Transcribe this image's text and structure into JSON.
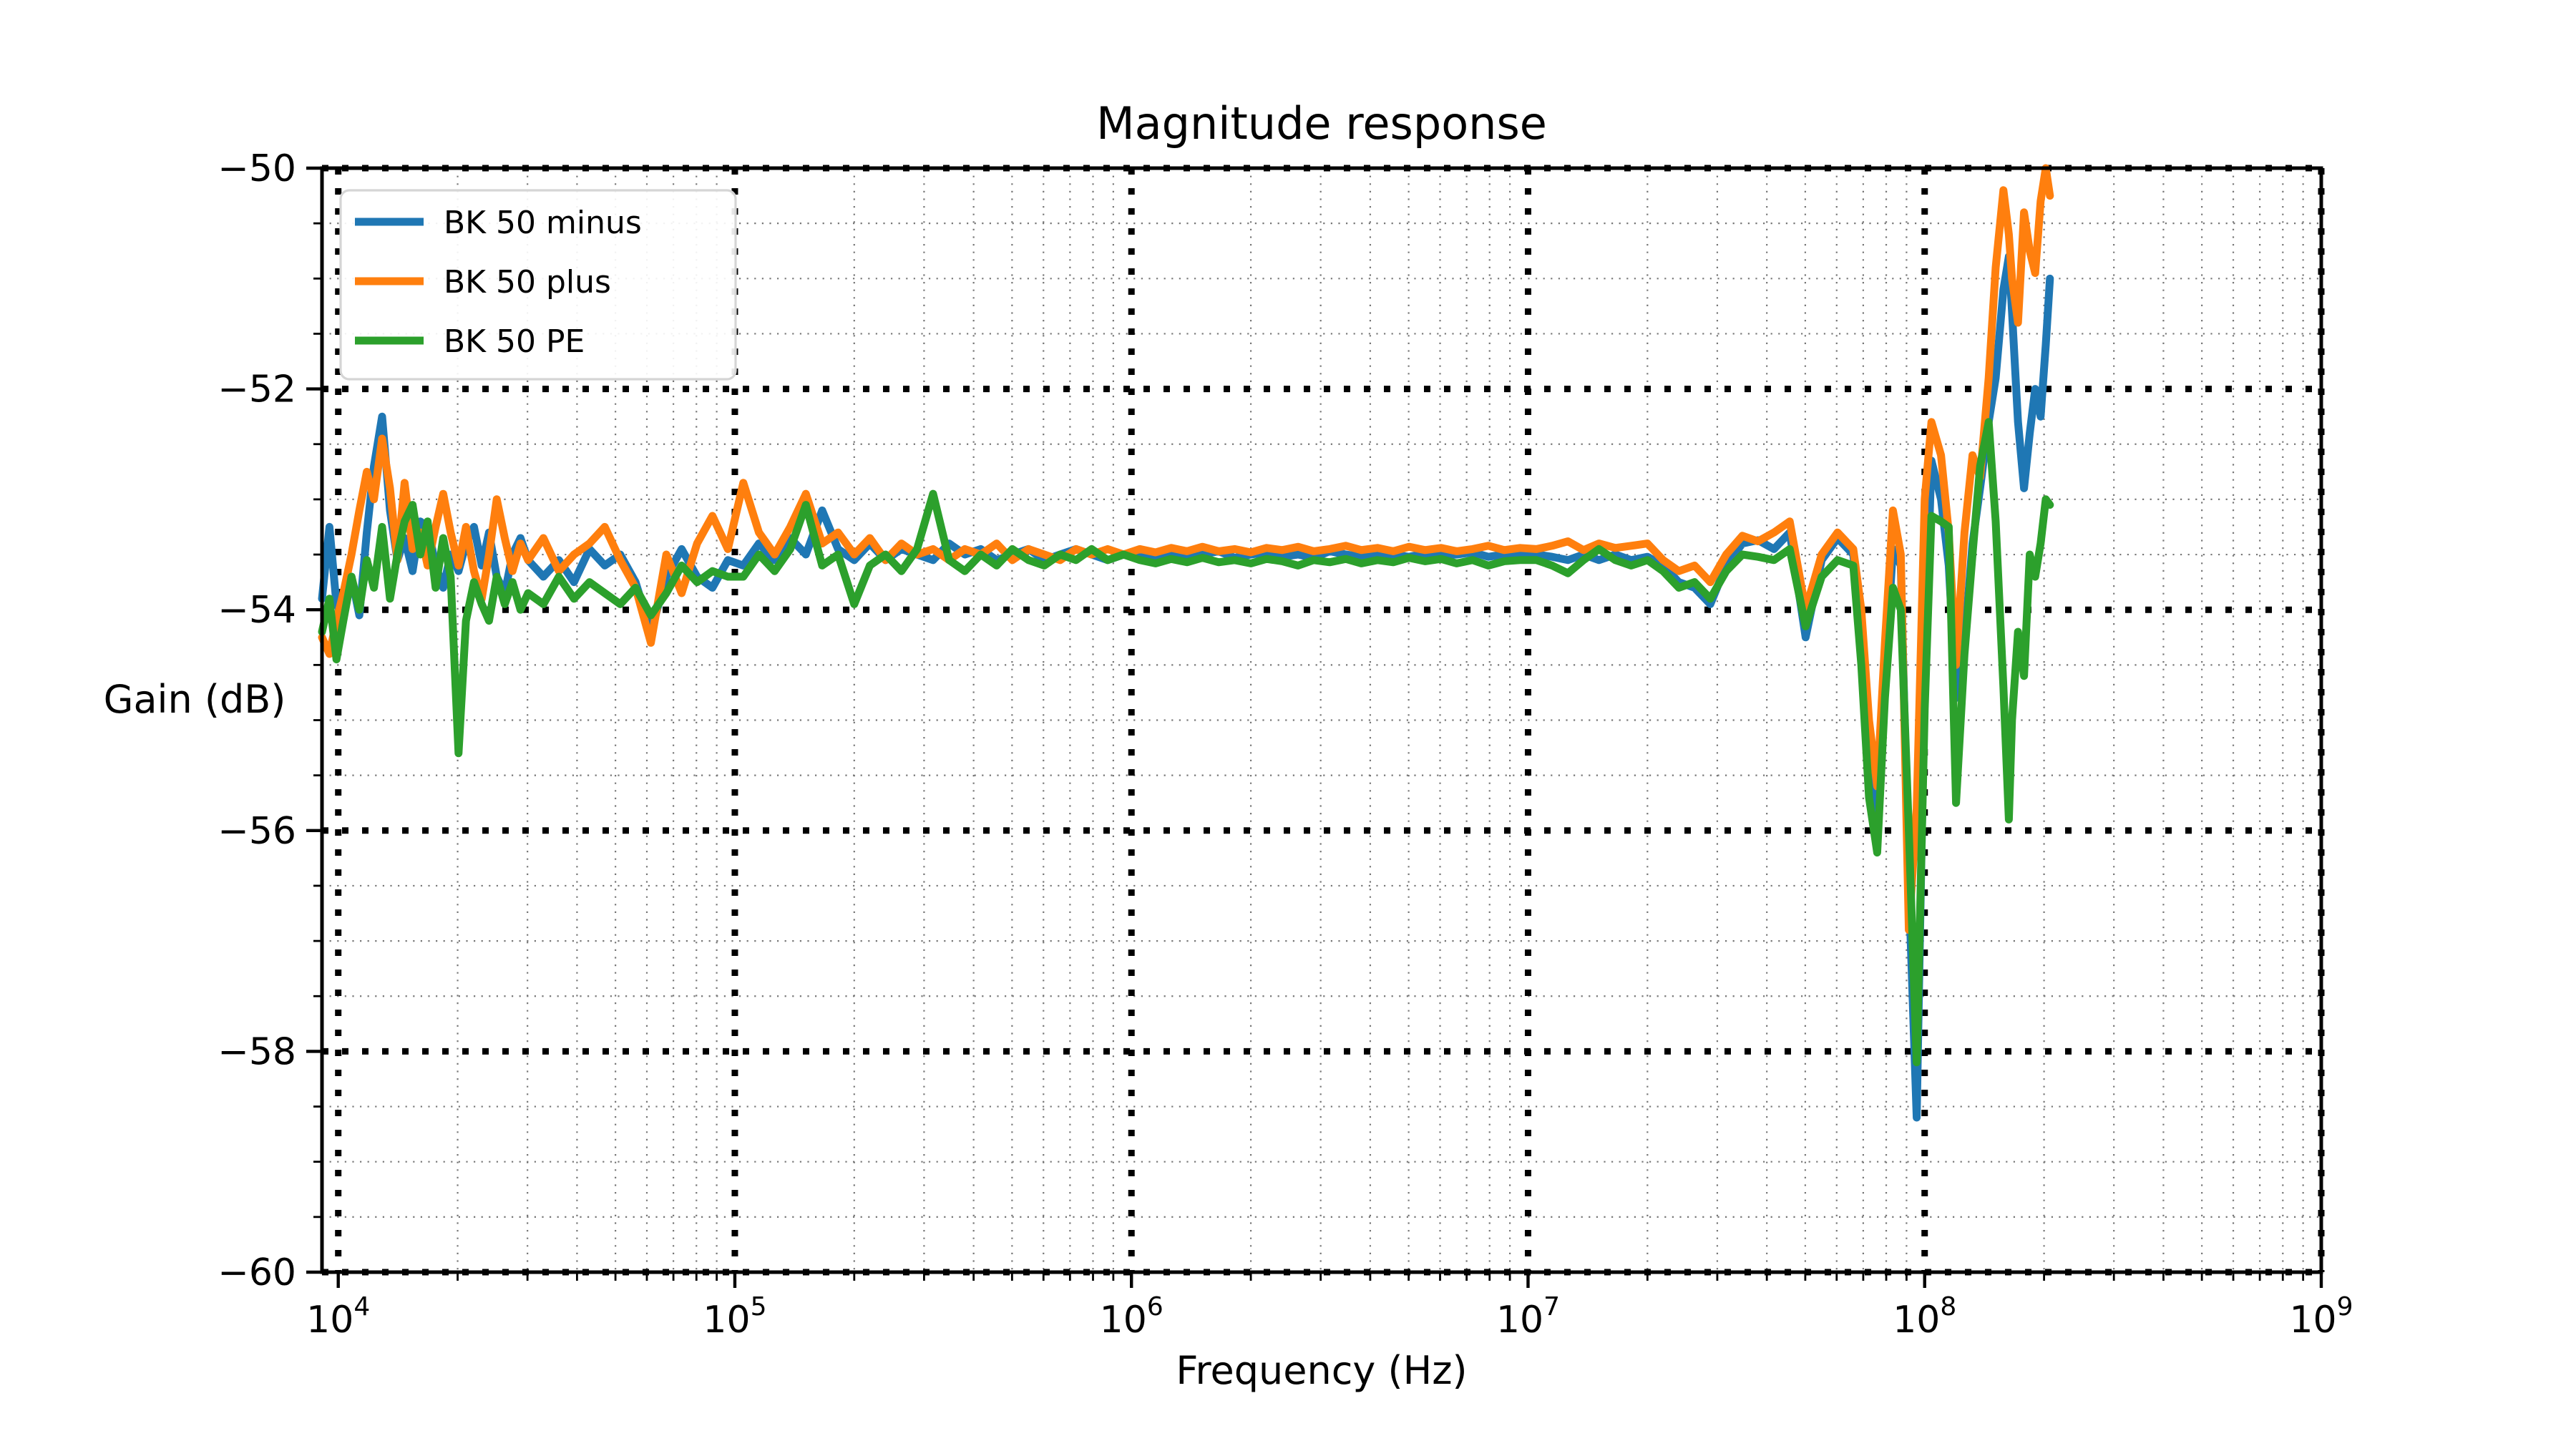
{
  "figure": {
    "background": "#ffffff",
    "plot_background": "#ffffff",
    "spine_color": "#000000",
    "major_grid_color": "#000000",
    "minor_grid_color": "#777777",
    "legend_border_color": "#d5d5d5"
  },
  "chart_data": {
    "type": "line",
    "title": "Magnitude response",
    "xlabel": "Frequency (Hz)",
    "ylabel": "Gain (dB)",
    "x_scale": "log",
    "y_scale": "linear",
    "xlim": [
      9100,
      1000000000
    ],
    "ylim": [
      -60,
      -50
    ],
    "x_tick_base": "10",
    "x_tick_exponents": [
      4,
      5,
      6,
      7,
      8,
      9
    ],
    "y_ticks": [
      -50,
      -52,
      -54,
      -56,
      -58,
      -60
    ],
    "y_tick_labels": [
      "−50",
      "−52",
      "−54",
      "−56",
      "−58",
      "−60"
    ],
    "y_minor_step": 0.5,
    "grid": {
      "major": true,
      "minor": true,
      "style": "dotted"
    },
    "legend_position": "upper left",
    "freq_hz": [
      9100,
      9500,
      9900,
      10300,
      10800,
      11300,
      11800,
      12300,
      12900,
      13500,
      14100,
      14700,
      15400,
      16100,
      16800,
      17600,
      18400,
      19200,
      20100,
      21000,
      22000,
      23000,
      24000,
      25100,
      26300,
      27500,
      28800,
      30100,
      32900,
      36000,
      39300,
      43000,
      47000,
      51400,
      56200,
      61400,
      67200,
      73400,
      80300,
      87800,
      96000,
      105000,
      115000,
      126000,
      138000,
      151000,
      166000,
      182000,
      200000,
      219000,
      240000,
      263000,
      288000,
      316000,
      347000,
      380000,
      417000,
      457000,
      501000,
      550000,
      603000,
      661000,
      725000,
      794000,
      871000,
      955000,
      1050000,
      1150000,
      1260000,
      1380000,
      1510000,
      1660000,
      1820000,
      2000000,
      2190000,
      2400000,
      2630000,
      2880000,
      3160000,
      3470000,
      3800000,
      4170000,
      4570000,
      5010000,
      5500000,
      6030000,
      6610000,
      7250000,
      7940000,
      8710000,
      9550000,
      10500000,
      11500000,
      12600000,
      13800000,
      15100000,
      16600000,
      18200000,
      20000000,
      21900000,
      24000000,
      26300000,
      28800000,
      31600000,
      34700000,
      38000000,
      41700000,
      45700000,
      50100000,
      55000000,
      60300000,
      66100000,
      69200000,
      72400000,
      75900000,
      79400000,
      83200000,
      87100000,
      91200000,
      95500000,
      100000000,
      104000000,
      110000000,
      115000000,
      120000000,
      126000000,
      132000000,
      138000000,
      145000000,
      151000000,
      158000000,
      163000000,
      166000000,
      172000000,
      178000000,
      184000000,
      190000000,
      196000000,
      202000000,
      207000000
    ],
    "series": [
      {
        "name": "BK 50 minus",
        "color": "#1f77b4",
        "values": [
          -53.9,
          -53.25,
          -53.95,
          -54.05,
          -53.7,
          -54.05,
          -53.3,
          -52.7,
          -52.25,
          -53.1,
          -53.55,
          -53.35,
          -53.65,
          -53.2,
          -53.25,
          -53.6,
          -53.8,
          -53.5,
          -53.65,
          -53.4,
          -53.25,
          -53.6,
          -53.3,
          -53.7,
          -53.85,
          -53.5,
          -53.35,
          -53.55,
          -53.7,
          -53.55,
          -53.75,
          -53.45,
          -53.6,
          -53.5,
          -53.75,
          -54.2,
          -53.7,
          -53.45,
          -53.7,
          -53.8,
          -53.55,
          -53.6,
          -53.4,
          -53.55,
          -53.35,
          -53.5,
          -53.1,
          -53.45,
          -53.55,
          -53.4,
          -53.55,
          -53.45,
          -53.5,
          -53.55,
          -53.4,
          -53.5,
          -53.45,
          -53.55,
          -53.5,
          -53.45,
          -53.55,
          -53.5,
          -53.45,
          -53.5,
          -53.55,
          -53.5,
          -53.5,
          -53.52,
          -53.48,
          -53.52,
          -53.5,
          -53.47,
          -53.53,
          -53.5,
          -53.48,
          -53.52,
          -53.5,
          -53.53,
          -53.47,
          -53.5,
          -53.52,
          -53.48,
          -53.5,
          -53.52,
          -53.49,
          -53.51,
          -53.5,
          -53.48,
          -53.52,
          -53.5,
          -53.49,
          -53.5,
          -53.52,
          -53.55,
          -53.5,
          -53.55,
          -53.5,
          -53.55,
          -53.52,
          -53.6,
          -53.75,
          -53.8,
          -53.95,
          -53.6,
          -53.4,
          -53.37,
          -53.45,
          -53.3,
          -54.25,
          -53.55,
          -53.35,
          -53.5,
          -54.3,
          -55.5,
          -56.0,
          -54.6,
          -53.45,
          -53.6,
          -56.5,
          -58.6,
          -54.6,
          -52.65,
          -53.0,
          -53.6,
          -54.8,
          -54.3,
          -53.4,
          -52.9,
          -52.3,
          -51.9,
          -51.1,
          -50.8,
          -51.3,
          -52.3,
          -52.9,
          -52.4,
          -52.0,
          -52.25,
          -51.6,
          -51.0
        ]
      },
      {
        "name": "BK 50 plus",
        "color": "#ff7f0e",
        "values": [
          -54.25,
          -54.4,
          -54.1,
          -53.85,
          -53.5,
          -53.1,
          -52.75,
          -53.0,
          -52.45,
          -52.9,
          -53.55,
          -52.85,
          -53.45,
          -53.3,
          -53.6,
          -53.25,
          -52.95,
          -53.3,
          -53.6,
          -53.25,
          -53.65,
          -53.9,
          -53.5,
          -53.0,
          -53.35,
          -53.65,
          -53.4,
          -53.55,
          -53.35,
          -53.65,
          -53.5,
          -53.4,
          -53.25,
          -53.55,
          -53.8,
          -54.3,
          -53.5,
          -53.85,
          -53.4,
          -53.15,
          -53.45,
          -52.85,
          -53.3,
          -53.5,
          -53.25,
          -52.95,
          -53.4,
          -53.3,
          -53.5,
          -53.35,
          -53.55,
          -53.4,
          -53.5,
          -53.45,
          -53.55,
          -53.45,
          -53.5,
          -53.4,
          -53.55,
          -53.45,
          -53.5,
          -53.55,
          -53.45,
          -53.5,
          -53.45,
          -53.5,
          -53.45,
          -53.48,
          -53.44,
          -53.47,
          -53.43,
          -53.47,
          -53.45,
          -53.48,
          -53.44,
          -53.46,
          -53.43,
          -53.47,
          -53.45,
          -53.42,
          -53.46,
          -53.44,
          -53.47,
          -53.43,
          -53.46,
          -53.44,
          -53.47,
          -53.45,
          -53.42,
          -53.46,
          -53.44,
          -53.45,
          -53.42,
          -53.38,
          -53.46,
          -53.4,
          -53.44,
          -53.42,
          -53.4,
          -53.55,
          -53.65,
          -53.6,
          -53.75,
          -53.5,
          -53.33,
          -53.38,
          -53.3,
          -53.2,
          -54.0,
          -53.5,
          -53.3,
          -53.45,
          -54.0,
          -55.0,
          -55.6,
          -54.3,
          -53.1,
          -53.5,
          -56.9,
          -55.8,
          -53.0,
          -52.3,
          -52.6,
          -53.3,
          -54.5,
          -53.3,
          -52.6,
          -52.8,
          -51.9,
          -50.9,
          -50.2,
          -50.6,
          -51.0,
          -51.4,
          -50.4,
          -50.75,
          -50.95,
          -50.3,
          -50.0,
          -50.25
        ]
      },
      {
        "name": "BK 50 PE",
        "color": "#2ca02c",
        "values": [
          -54.2,
          -53.9,
          -54.45,
          -54.1,
          -53.7,
          -54.0,
          -53.55,
          -53.8,
          -53.25,
          -53.9,
          -53.5,
          -53.2,
          -53.05,
          -53.5,
          -53.2,
          -53.8,
          -53.35,
          -53.7,
          -55.3,
          -54.1,
          -53.75,
          -53.95,
          -54.1,
          -53.7,
          -53.95,
          -53.75,
          -54.0,
          -53.85,
          -53.95,
          -53.7,
          -53.9,
          -53.75,
          -53.85,
          -53.95,
          -53.8,
          -54.05,
          -53.85,
          -53.6,
          -53.75,
          -53.65,
          -53.7,
          -53.7,
          -53.5,
          -53.65,
          -53.45,
          -53.05,
          -53.6,
          -53.5,
          -53.95,
          -53.6,
          -53.5,
          -53.65,
          -53.45,
          -52.95,
          -53.55,
          -53.65,
          -53.5,
          -53.6,
          -53.45,
          -53.55,
          -53.6,
          -53.5,
          -53.55,
          -53.45,
          -53.55,
          -53.5,
          -53.55,
          -53.58,
          -53.54,
          -53.57,
          -53.53,
          -53.57,
          -53.55,
          -53.58,
          -53.54,
          -53.56,
          -53.6,
          -53.55,
          -53.57,
          -53.54,
          -53.58,
          -53.55,
          -53.57,
          -53.53,
          -53.56,
          -53.54,
          -53.58,
          -53.55,
          -53.6,
          -53.56,
          -53.55,
          -53.55,
          -53.6,
          -53.67,
          -53.55,
          -53.45,
          -53.55,
          -53.6,
          -53.55,
          -53.65,
          -53.8,
          -53.75,
          -53.9,
          -53.65,
          -53.5,
          -53.52,
          -53.55,
          -53.45,
          -54.15,
          -53.7,
          -53.55,
          -53.6,
          -54.5,
          -55.7,
          -56.2,
          -54.8,
          -53.8,
          -54.0,
          -56.0,
          -58.1,
          -54.9,
          -53.15,
          -53.2,
          -53.25,
          -55.75,
          -54.4,
          -53.5,
          -52.7,
          -52.3,
          -53.2,
          -54.7,
          -55.9,
          -55.0,
          -54.2,
          -54.6,
          -53.5,
          -53.7,
          -53.4,
          -53.0,
          -53.05
        ]
      }
    ]
  }
}
